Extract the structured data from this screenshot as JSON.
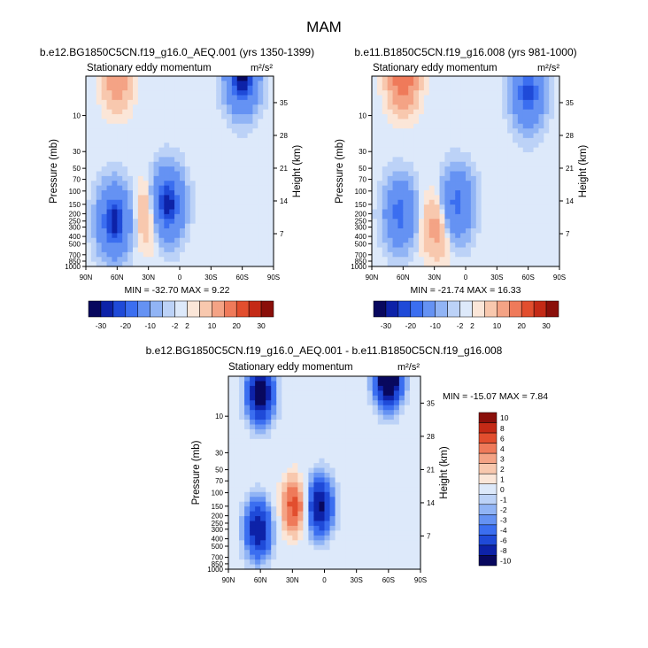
{
  "page": {
    "title": "MAM"
  },
  "colors": {
    "palette": [
      "#08085e",
      "#0d22a8",
      "#1f4ad8",
      "#3b6ef0",
      "#6592f3",
      "#91b4f5",
      "#bcd2f7",
      "#dde9fa",
      "#fbe6d8",
      "#f8c8ae",
      "#f4a385",
      "#ef7a5a",
      "#e24e2e",
      "#c42a16",
      "#8a0f0a"
    ]
  },
  "chart_data": [
    {
      "type": "heatmap",
      "title": "b.e12.BG1850C5CN.f19_g16.0_AEQ.001 (yrs 1350-1399)",
      "left_label": "Stationary eddy momentum",
      "units": "m²/s²",
      "ylabel": "Pressure (mb)",
      "y2label": "Height (km)",
      "x_ticks": [
        "90N",
        "60N",
        "30N",
        "0",
        "30S",
        "60S",
        "90S"
      ],
      "y_ticks": [
        "10",
        "30",
        "50",
        "70",
        "100",
        "150",
        "200",
        "250",
        "300",
        "400",
        "500",
        "700",
        "850",
        "1000"
      ],
      "y2_ticks": [
        "35",
        "28",
        "21",
        "14",
        "7"
      ],
      "stats": "MIN = -32.70  MAX =  9.22",
      "colorbar_labels": [
        "-30",
        "-20",
        "-10",
        "-2",
        "2",
        "10",
        "20",
        "30"
      ],
      "features": [
        {
          "lat": 63,
          "p": 250,
          "v": -28
        },
        {
          "lat": 12,
          "p": 150,
          "v": -30
        },
        {
          "lat": 28,
          "p": 200,
          "v": 7
        },
        {
          "lat": -60,
          "p": 3,
          "v": -32
        },
        {
          "lat": 60,
          "p": 3,
          "v": 9
        }
      ]
    },
    {
      "type": "heatmap",
      "title": "b.e11.B1850C5CN.f19_g16.008 (yrs 981-1000)",
      "left_label": "Stationary eddy momentum",
      "units": "m²/s²",
      "ylabel": "Pressure (mb)",
      "y2label": "Height (km)",
      "x_ticks": [
        "90N",
        "60N",
        "30N",
        "0",
        "30S",
        "60S",
        "90S"
      ],
      "y_ticks": [
        "10",
        "30",
        "50",
        "70",
        "100",
        "150",
        "200",
        "250",
        "300",
        "400",
        "500",
        "700",
        "850",
        "1000"
      ],
      "y2_ticks": [
        "35",
        "28",
        "21",
        "14",
        "7"
      ],
      "stats": "MIN = -21.74  MAX =  16.33",
      "colorbar_labels": [
        "-30",
        "-20",
        "-10",
        "-2",
        "2",
        "10",
        "20",
        "30"
      ],
      "features": [
        {
          "lat": 63,
          "p": 200,
          "v": -18
        },
        {
          "lat": 8,
          "p": 150,
          "v": -18
        },
        {
          "lat": 28,
          "p": 300,
          "v": 7
        },
        {
          "lat": -60,
          "p": 5,
          "v": -22
        },
        {
          "lat": 60,
          "p": 3,
          "v": 16
        }
      ]
    },
    {
      "type": "heatmap",
      "title": "b.e12.BG1850C5CN.f19_g16.0_AEQ.001 - b.e11.B1850C5CN.f19_g16.008",
      "left_label": "Stationary eddy momentum",
      "units": "m²/s²",
      "ylabel": "Pressure (mb)",
      "y2label": "Height (km)",
      "x_ticks": [
        "90N",
        "60N",
        "30N",
        "0",
        "30S",
        "60S",
        "90S"
      ],
      "y_ticks": [
        "10",
        "30",
        "50",
        "70",
        "100",
        "150",
        "200",
        "250",
        "300",
        "400",
        "500",
        "700",
        "850",
        "1000"
      ],
      "y2_ticks": [
        "35",
        "28",
        "21",
        "14",
        "7"
      ],
      "stats": "MIN = -15.07  MAX =   7.84",
      "colorbar_labels": [
        "10",
        "8",
        "6",
        "4",
        "3",
        "2",
        "1",
        "0",
        "-1",
        "-2",
        "-3",
        "-4",
        "-6",
        "-8",
        "-10"
      ],
      "features": [
        {
          "lat": 60,
          "p": 5,
          "v": -12
        },
        {
          "lat": 62,
          "p": 300,
          "v": -10
        },
        {
          "lat": 28,
          "p": 150,
          "v": 7
        },
        {
          "lat": 5,
          "p": 150,
          "v": -11
        },
        {
          "lat": -60,
          "p": 3,
          "v": -15
        }
      ]
    }
  ]
}
